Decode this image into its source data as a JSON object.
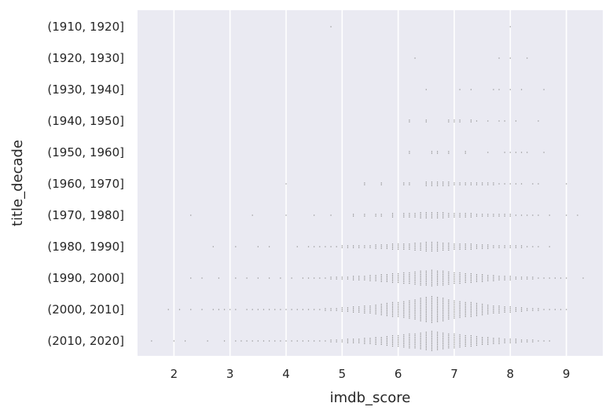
{
  "chart_data": {
    "type": "scatter",
    "xlabel": "imdb_score",
    "ylabel": "title_decade",
    "xlim": [
      1.35,
      9.65
    ],
    "x_ticks": [
      "2",
      "3",
      "4",
      "5",
      "6",
      "7",
      "8",
      "9"
    ],
    "categories": [
      "(1910, 1920]",
      "(1920, 1930]",
      "(1930, 1940]",
      "(1940, 1950]",
      "(1950, 1960]",
      "(1960, 1970]",
      "(1970, 1980]",
      "(1980, 1990]",
      "(1990, 2000]",
      "(2000, 2010]",
      "(2010, 2020]"
    ],
    "grid": true,
    "background": "#eaeaf2",
    "point_color": "#8c8c8c",
    "series": [
      {
        "category": "(1910, 1920]",
        "x": [
          4.8,
          8.0
        ]
      },
      {
        "category": "(1920, 1930]",
        "x": [
          6.3,
          7.8,
          8.0,
          8.3
        ]
      },
      {
        "category": "(1930, 1940]",
        "x": [
          6.5,
          7.1,
          7.3,
          7.7,
          7.8,
          8.0,
          8.2,
          8.6
        ]
      },
      {
        "category": "(1940, 1950]",
        "x": [
          6.2,
          6.5,
          6.9,
          7.0,
          7.1,
          7.3,
          7.4,
          7.6,
          7.8,
          7.9,
          8.1,
          8.5
        ]
      },
      {
        "category": "(1950, 1960]",
        "x": [
          6.2,
          6.6,
          6.7,
          6.9,
          7.2,
          7.6,
          7.9,
          8.0,
          8.1,
          8.2,
          8.3,
          8.6
        ]
      },
      {
        "category": "(1960, 1970]",
        "x": [
          4.0,
          5.4,
          5.7,
          6.1,
          6.2,
          6.5,
          6.6,
          6.7,
          6.8,
          6.9,
          7.0,
          7.1,
          7.2,
          7.3,
          7.4,
          7.5,
          7.6,
          7.7,
          7.8,
          7.9,
          8.0,
          8.1,
          8.2,
          8.4,
          8.5,
          9.0
        ]
      },
      {
        "category": "(1970, 1980]",
        "x": [
          2.3,
          3.4,
          4.0,
          4.5,
          4.8,
          5.2,
          5.4,
          5.6,
          5.7,
          5.9,
          6.1,
          6.2,
          6.3,
          6.4,
          6.5,
          6.6,
          6.7,
          6.8,
          6.9,
          7.0,
          7.1,
          7.2,
          7.3,
          7.4,
          7.5,
          7.6,
          7.7,
          7.8,
          7.9,
          8.0,
          8.1,
          8.2,
          8.3,
          8.4,
          8.5,
          8.7,
          9.0,
          9.2
        ]
      },
      {
        "category": "(1980, 1990]",
        "x": [
          2.7,
          3.1,
          3.5,
          3.7,
          4.2,
          4.4,
          4.5,
          4.6,
          4.7,
          4.8,
          4.9,
          5.0,
          5.1,
          5.2,
          5.3,
          5.4,
          5.5,
          5.6,
          5.7,
          5.8,
          5.9,
          6.0,
          6.1,
          6.2,
          6.3,
          6.4,
          6.5,
          6.6,
          6.7,
          6.8,
          6.9,
          7.0,
          7.1,
          7.2,
          7.3,
          7.4,
          7.5,
          7.6,
          7.7,
          7.8,
          7.9,
          8.0,
          8.1,
          8.2,
          8.3,
          8.4,
          8.5,
          8.7
        ]
      },
      {
        "category": "(1990, 2000]",
        "x": [
          2.3,
          2.5,
          2.8,
          3.1,
          3.3,
          3.5,
          3.7,
          3.9,
          4.1,
          4.3,
          4.4,
          4.5,
          4.6,
          4.7,
          4.8,
          4.9,
          5.0,
          5.1,
          5.2,
          5.3,
          5.4,
          5.5,
          5.6,
          5.7,
          5.8,
          5.9,
          6.0,
          6.1,
          6.2,
          6.3,
          6.4,
          6.5,
          6.6,
          6.7,
          6.8,
          6.9,
          7.0,
          7.1,
          7.2,
          7.3,
          7.4,
          7.5,
          7.6,
          7.7,
          7.8,
          7.9,
          8.0,
          8.1,
          8.2,
          8.3,
          8.4,
          8.5,
          8.6,
          8.7,
          8.8,
          8.9,
          9.0,
          9.3
        ]
      },
      {
        "category": "(2000, 2010]",
        "x": [
          1.9,
          2.1,
          2.3,
          2.5,
          2.7,
          2.8,
          2.9,
          3.0,
          3.1,
          3.3,
          3.4,
          3.5,
          3.6,
          3.7,
          3.8,
          3.9,
          4.0,
          4.1,
          4.2,
          4.3,
          4.4,
          4.5,
          4.6,
          4.7,
          4.8,
          4.9,
          5.0,
          5.1,
          5.2,
          5.3,
          5.4,
          5.5,
          5.6,
          5.7,
          5.8,
          5.9,
          6.0,
          6.1,
          6.2,
          6.3,
          6.4,
          6.5,
          6.6,
          6.7,
          6.8,
          6.9,
          7.0,
          7.1,
          7.2,
          7.3,
          7.4,
          7.5,
          7.6,
          7.7,
          7.8,
          7.9,
          8.0,
          8.1,
          8.2,
          8.3,
          8.4,
          8.5,
          8.6,
          8.7,
          8.8,
          8.9,
          9.0
        ]
      },
      {
        "category": "(2010, 2020]",
        "x": [
          1.6,
          2.0,
          2.2,
          2.6,
          2.9,
          3.1,
          3.2,
          3.3,
          3.4,
          3.5,
          3.6,
          3.7,
          3.8,
          3.9,
          4.0,
          4.1,
          4.2,
          4.3,
          4.4,
          4.5,
          4.6,
          4.7,
          4.8,
          4.9,
          5.0,
          5.1,
          5.2,
          5.3,
          5.4,
          5.5,
          5.6,
          5.7,
          5.8,
          5.9,
          6.0,
          6.1,
          6.2,
          6.3,
          6.4,
          6.5,
          6.6,
          6.7,
          6.8,
          6.9,
          7.0,
          7.1,
          7.2,
          7.3,
          7.4,
          7.5,
          7.6,
          7.7,
          7.8,
          7.9,
          8.0,
          8.1,
          8.2,
          8.3,
          8.4,
          8.5,
          8.6,
          8.7
        ]
      }
    ]
  }
}
